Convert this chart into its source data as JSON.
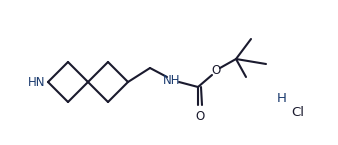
{
  "line_color": "#1a1a2e",
  "background_color": "#ffffff",
  "line_width": 1.5,
  "font_size": 8.5,
  "font_color": "#1a3a6e",
  "hcl_font_size": 9.5,
  "atoms": {
    "HN": "HN",
    "NH": "NH",
    "O_ether": "O",
    "O_carbonyl": "O",
    "H": "H",
    "Cl": "Cl"
  }
}
